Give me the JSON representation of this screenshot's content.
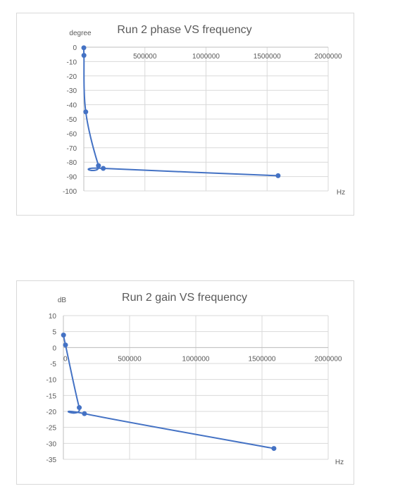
{
  "chart_data": [
    {
      "type": "scatter",
      "title": "Run 2 phase  VS  frequency",
      "ylabel": "degree",
      "xlabel": "Hz",
      "xlim": [
        0,
        2000000
      ],
      "ylim": [
        -100,
        0
      ],
      "xticks": [
        500000,
        1000000,
        1500000,
        2000000
      ],
      "yticks": [
        0,
        -10,
        -20,
        -30,
        -40,
        -50,
        -60,
        -70,
        -80,
        -90,
        -100
      ],
      "grid": true,
      "series": [
        {
          "color": "#4472c4",
          "x": [
            100,
            1000,
            15900,
            120000,
            159000,
            1590000
          ],
          "y": [
            -0.4,
            -5.7,
            -45,
            -82.4,
            -84.3,
            -89.4
          ]
        }
      ]
    },
    {
      "type": "scatter",
      "title": "Run 2 gain  VS  frequency",
      "ylabel": "dB",
      "xlabel": "Hz",
      "xlim": [
        0,
        2000000
      ],
      "ylim": [
        -35,
        10
      ],
      "xticks": [
        0,
        500000,
        1000000,
        1500000,
        2000000
      ],
      "yticks": [
        10,
        5,
        0,
        -5,
        -10,
        -15,
        -20,
        -25,
        -30,
        -35
      ],
      "grid": true,
      "series": [
        {
          "color": "#4472c4",
          "x": [
            1000,
            15900,
            120000,
            159000,
            1590000
          ],
          "y": [
            3.9,
            0.8,
            -18.8,
            -20.7,
            -31.6
          ]
        }
      ]
    }
  ]
}
